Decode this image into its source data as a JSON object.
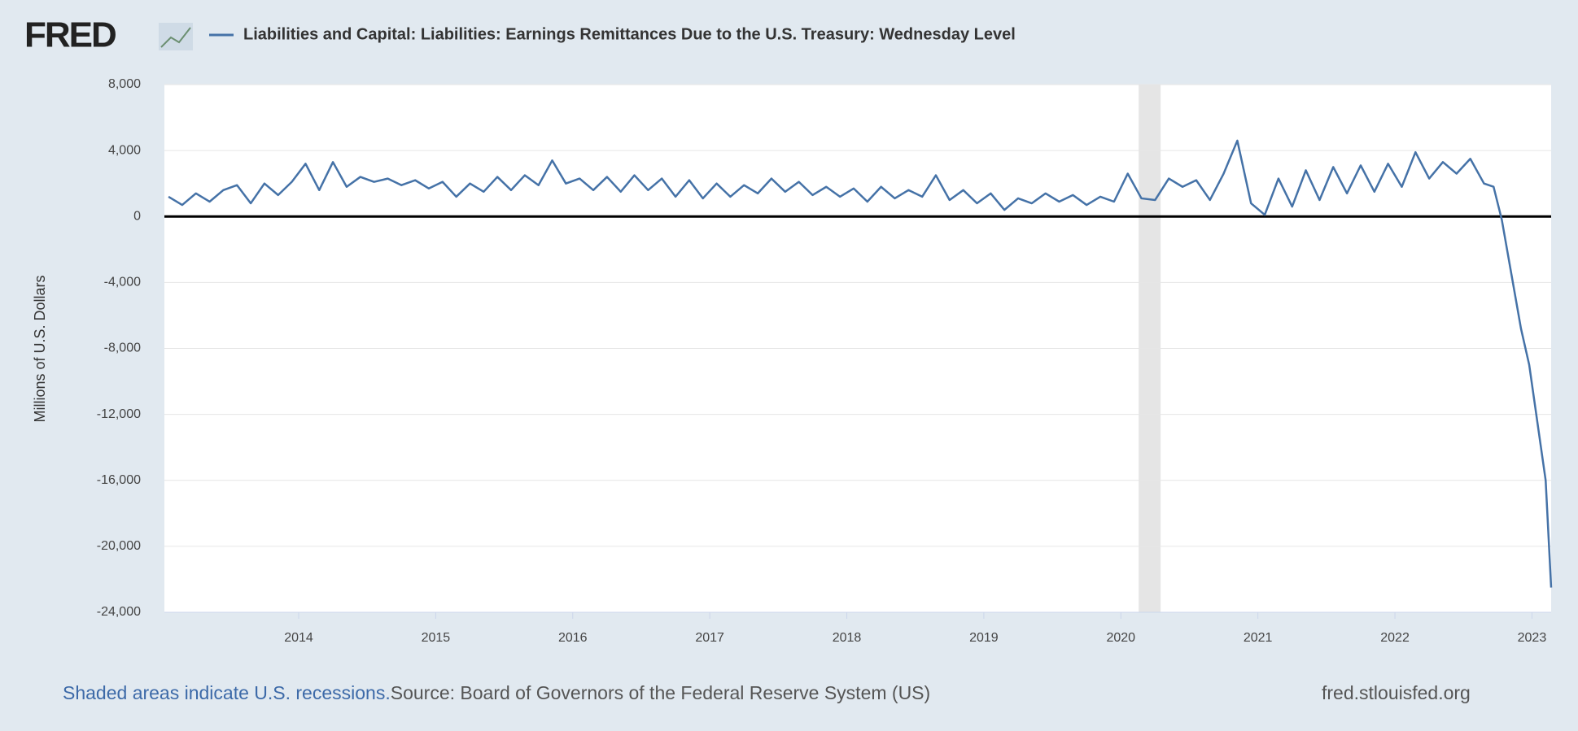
{
  "logo": "FRED",
  "chart_data": {
    "type": "line",
    "title": "Liabilities and Capital: Liabilities: Earnings Remittances Due to the U.S. Treasury: Wednesday Level",
    "y_label": "Millions of U.S. Dollars",
    "recession_note": "Shaded areas indicate U.S. recessions.",
    "source": "Source: Board of Governors of the Federal Reserve System (US)",
    "site": "fred.stlouisfed.org",
    "recessions": [
      [
        2020.13,
        2020.29
      ]
    ],
    "xlim": [
      2013.02,
      2023.14
    ],
    "xticks": [
      2014,
      2015,
      2016,
      2017,
      2018,
      2019,
      2020,
      2021,
      2022,
      2023
    ],
    "ylim": [
      -24000,
      8000
    ],
    "yticks": [
      {
        "value": -24000,
        "label": "-24,000"
      },
      {
        "value": -20000,
        "label": "-20,000"
      },
      {
        "value": -16000,
        "label": "-16,000"
      },
      {
        "value": -12000,
        "label": "-12,000"
      },
      {
        "value": -8000,
        "label": "-8,000"
      },
      {
        "value": -4000,
        "label": "-4,000"
      },
      0,
      {
        "value": 4000,
        "label": "4,000"
      },
      {
        "value": 8000,
        "label": "8,000"
      }
    ],
    "grid": true,
    "series": [
      {
        "name": "Liabilities and Capital: Liabilities: Earnings Remittances Due to the U.S. Treasury: Wednesday Level",
        "color": "#4572a7",
        "x": [
          2013.05,
          2013.15,
          2013.25,
          2013.35,
          2013.45,
          2013.55,
          2013.65,
          2013.75,
          2013.85,
          2013.95,
          2014.05,
          2014.15,
          2014.25,
          2014.35,
          2014.45,
          2014.55,
          2014.65,
          2014.75,
          2014.85,
          2014.95,
          2015.05,
          2015.15,
          2015.25,
          2015.35,
          2015.45,
          2015.55,
          2015.65,
          2015.75,
          2015.85,
          2015.95,
          2016.05,
          2016.15,
          2016.25,
          2016.35,
          2016.45,
          2016.55,
          2016.65,
          2016.75,
          2016.85,
          2016.95,
          2017.05,
          2017.15,
          2017.25,
          2017.35,
          2017.45,
          2017.55,
          2017.65,
          2017.75,
          2017.85,
          2017.95,
          2018.05,
          2018.15,
          2018.25,
          2018.35,
          2018.45,
          2018.55,
          2018.65,
          2018.75,
          2018.85,
          2018.95,
          2019.05,
          2019.15,
          2019.25,
          2019.35,
          2019.45,
          2019.55,
          2019.65,
          2019.75,
          2019.85,
          2019.95,
          2020.05,
          2020.15,
          2020.25,
          2020.35,
          2020.45,
          2020.55,
          2020.65,
          2020.75,
          2020.85,
          2020.95,
          2021.05,
          2021.15,
          2021.25,
          2021.35,
          2021.45,
          2021.55,
          2021.65,
          2021.75,
          2021.85,
          2021.95,
          2022.05,
          2022.15,
          2022.25,
          2022.35,
          2022.45,
          2022.55,
          2022.65,
          2022.72,
          2022.78,
          2022.85,
          2022.92,
          2022.98,
          2023.04,
          2023.1,
          2023.14
        ],
        "values": [
          1200,
          700,
          1400,
          900,
          1600,
          1900,
          800,
          2000,
          1300,
          2100,
          3200,
          1600,
          3300,
          1800,
          2400,
          2100,
          2300,
          1900,
          2200,
          1700,
          2100,
          1200,
          2000,
          1500,
          2400,
          1600,
          2500,
          1900,
          3400,
          2000,
          2300,
          1600,
          2400,
          1500,
          2500,
          1600,
          2300,
          1200,
          2200,
          1100,
          2000,
          1200,
          1900,
          1400,
          2300,
          1500,
          2100,
          1300,
          1800,
          1200,
          1700,
          900,
          1800,
          1100,
          1600,
          1200,
          2500,
          1000,
          1600,
          800,
          1400,
          400,
          1100,
          800,
          1400,
          900,
          1300,
          700,
          1200,
          900,
          2600,
          1100,
          1000,
          2300,
          1800,
          2200,
          1000,
          2600,
          4600,
          800,
          100,
          2300,
          600,
          2800,
          1000,
          3000,
          1400,
          3100,
          1500,
          3200,
          1800,
          3900,
          2300,
          3300,
          2600,
          3500,
          2000,
          1800,
          -200,
          -3500,
          -6800,
          -9000,
          -12500,
          -16000,
          -22500
        ]
      }
    ]
  }
}
